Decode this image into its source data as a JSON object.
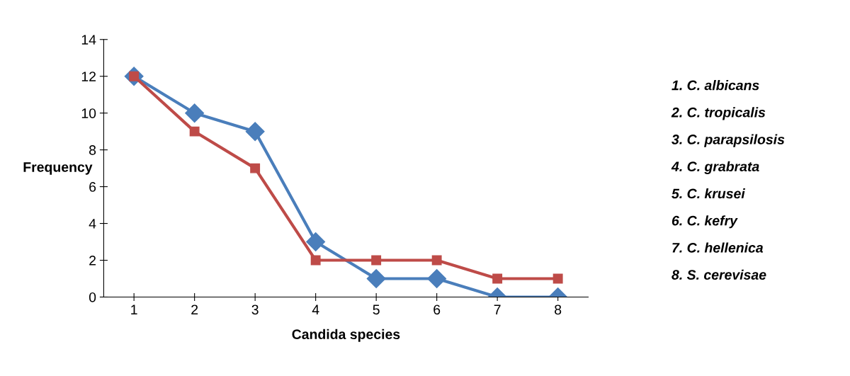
{
  "chart_data": {
    "type": "line",
    "xlabel": "Candida species",
    "ylabel": "Frequency",
    "categories": [
      "1",
      "2",
      "3",
      "4",
      "5",
      "6",
      "7",
      "8"
    ],
    "series": [
      {
        "color": "#4a7ebb",
        "marker": "diamond",
        "values": [
          12,
          10,
          9,
          3,
          1,
          1,
          0,
          0
        ]
      },
      {
        "color": "#be4b48",
        "marker": "square",
        "values": [
          12,
          9,
          7,
          2,
          2,
          2,
          1,
          1
        ]
      }
    ],
    "ylim": [
      0,
      14
    ],
    "yticks": [
      0,
      2,
      4,
      6,
      8,
      10,
      12,
      14
    ],
    "grid": false,
    "line_style": "solid",
    "annotations": [
      "1. C. albicans",
      "2. C. tropicalis",
      "3. C. parapsilosis",
      "4. C. grabrata",
      "5. C. krusei",
      "6. C. kefry",
      "7. C. hellenica",
      "8. S. cerevisae"
    ]
  }
}
